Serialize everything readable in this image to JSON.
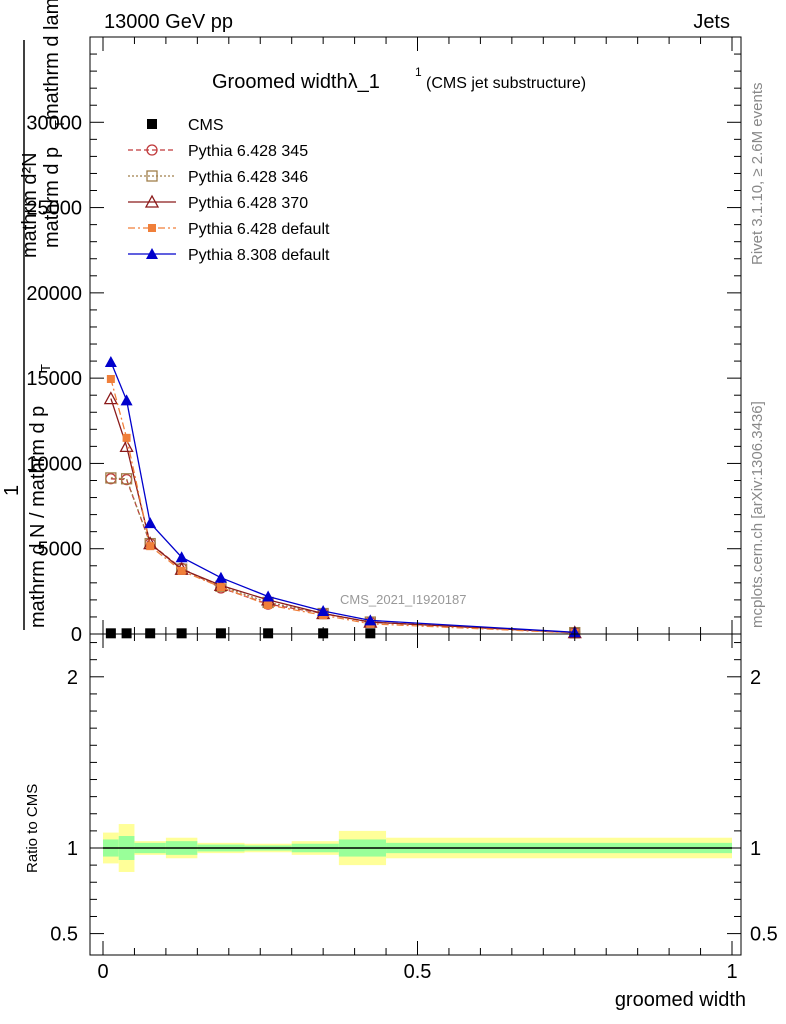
{
  "header": {
    "energy_label": "13000 GeV pp",
    "category_label": "Jets"
  },
  "side_text": {
    "rivet": "Rivet 3.1.10, ≥ 2.6M events",
    "mcplots": "mcplots.cern.ch [arXiv:1306.3436]"
  },
  "chart_data": [
    {
      "type": "line",
      "title": "Groomed widthλ_1",
      "title_superscript": "1",
      "subtitle": "(CMS jet substructure)",
      "watermark": "CMS_2021_I1920187",
      "ylabel_top": "mathrm d²N",
      "ylabel_top_cont": "mathrm d p",
      "ylabel_top_sub": "T",
      "ylabel_top_end": "mathrm d lambda",
      "ylabel_num": "1",
      "ylabel_den": "mathrm d N / mathrm d p",
      "ylabel_den_sub": "T",
      "xlim": [
        0,
        1
      ],
      "ylim": [
        0,
        35000
      ],
      "y_ticks": [
        0,
        5000,
        10000,
        15000,
        20000,
        25000,
        30000
      ],
      "y_tick_labels": [
        "0",
        "5000",
        "10000",
        "15000",
        "20000",
        "25000",
        "30000"
      ],
      "x": [
        0.0125,
        0.0375,
        0.075,
        0.125,
        0.1875,
        0.2625,
        0.35,
        0.425,
        0.75
      ],
      "cms": [
        40,
        40,
        40,
        40,
        40,
        40,
        40,
        40,
        40
      ],
      "series": [
        {
          "name": "CMS",
          "color": "#000000",
          "values": [
            40,
            40,
            40,
            40,
            40,
            40,
            40,
            40,
            40
          ]
        },
        {
          "name": "Pythia 6.428 345",
          "color": "#c0393b",
          "dash": "5,3",
          "marker": "circle-open",
          "values": [
            9100,
            9050,
            5300,
            3850,
            2700,
            1750,
            1200,
            700,
            80
          ]
        },
        {
          "name": "Pythia 6.428 346",
          "color": "#a07f4b",
          "dash": "2,2",
          "marker": "square-open",
          "values": [
            9150,
            9100,
            5300,
            3800,
            2800,
            1850,
            1200,
            700,
            80
          ]
        },
        {
          "name": "Pythia 6.428 370",
          "color": "#8b1a1a",
          "dash": "",
          "marker": "triangle-open",
          "values": [
            13800,
            11000,
            5300,
            3800,
            2850,
            2000,
            1200,
            700,
            80
          ]
        },
        {
          "name": "Pythia 6.428 default",
          "color": "#f07f3a",
          "dash": "7,3,2,3",
          "marker": "square-filled",
          "values": [
            14950,
            11500,
            5150,
            3700,
            2750,
            1700,
            1100,
            600,
            60
          ]
        },
        {
          "name": "Pythia 8.308 default",
          "color": "#0000cc",
          "dash": "",
          "marker": "triangle-filled",
          "values": [
            15950,
            13700,
            6500,
            4500,
            3300,
            2200,
            1350,
            800,
            100
          ]
        }
      ],
      "legend_placement": "top-left"
    },
    {
      "type": "band",
      "ylabel": "Ratio to CMS",
      "xlim": [
        0,
        1
      ],
      "ylim": [
        0.375,
        2.25
      ],
      "y_ticks": [
        0.5,
        1,
        2
      ],
      "y_tick_labels": [
        "0.5",
        "1",
        "2"
      ],
      "x_ticks": [
        0,
        0.5,
        1
      ],
      "x_tick_labels": [
        "0",
        "0.5",
        "1"
      ],
      "xlabel": "groomed width",
      "bins": [
        0,
        0.025,
        0.05,
        0.1,
        0.15,
        0.225,
        0.3,
        0.375,
        0.45,
        1.0
      ],
      "stat_band": [
        [
          0.95,
          1.05
        ],
        [
          0.93,
          1.07
        ],
        [
          0.97,
          1.03
        ],
        [
          0.96,
          1.04
        ],
        [
          0.98,
          1.02
        ],
        [
          0.985,
          1.015
        ],
        [
          0.975,
          1.025
        ],
        [
          0.95,
          1.05
        ],
        [
          0.97,
          1.03
        ]
      ],
      "total_band": [
        [
          0.91,
          1.09
        ],
        [
          0.86,
          1.14
        ],
        [
          0.96,
          1.04
        ],
        [
          0.94,
          1.06
        ],
        [
          0.97,
          1.03
        ],
        [
          0.975,
          1.025
        ],
        [
          0.96,
          1.04
        ],
        [
          0.9,
          1.1
        ],
        [
          0.94,
          1.06
        ]
      ],
      "stat_color": "#99ff99",
      "total_color": "#ffff99"
    }
  ]
}
